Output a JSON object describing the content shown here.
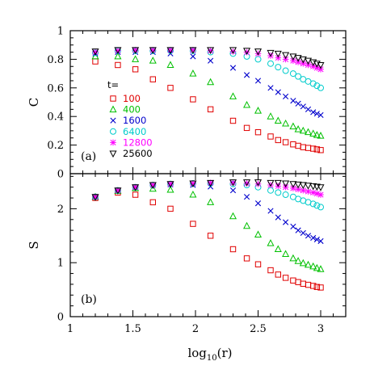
{
  "chart_data": [
    {
      "type": "scatter",
      "panel_label": "(a)",
      "ylabel": "C",
      "xlabel": "",
      "xlim": [
        1,
        3.2
      ],
      "ylim": [
        0,
        1
      ],
      "x_ticks": [
        1,
        1.5,
        2,
        2.5,
        3
      ],
      "y_ticks": [
        0,
        0.2,
        0.4,
        0.6,
        0.8,
        1
      ],
      "y_tick_labels": [
        "0",
        "0.2",
        "0.4",
        "0.6",
        "0.8",
        "1"
      ],
      "legend": {
        "title": "t=",
        "placement": "left"
      },
      "series": [
        {
          "name": "100",
          "color": "#e00000",
          "marker": "square",
          "x": [
            1.2,
            1.38,
            1.52,
            1.66,
            1.8,
            1.98,
            2.12,
            2.3,
            2.41,
            2.5,
            2.6,
            2.66,
            2.72,
            2.78,
            2.82,
            2.86,
            2.9,
            2.94,
            2.97,
            3.0
          ],
          "y": [
            0.785,
            0.76,
            0.73,
            0.66,
            0.6,
            0.52,
            0.45,
            0.37,
            0.32,
            0.29,
            0.26,
            0.235,
            0.22,
            0.205,
            0.195,
            0.185,
            0.18,
            0.175,
            0.17,
            0.165
          ]
        },
        {
          "name": "400",
          "color": "#00c000",
          "marker": "triangle-up",
          "x": [
            1.2,
            1.38,
            1.52,
            1.66,
            1.8,
            1.98,
            2.12,
            2.3,
            2.41,
            2.5,
            2.6,
            2.66,
            2.72,
            2.78,
            2.82,
            2.86,
            2.9,
            2.94,
            2.97,
            3.0
          ],
          "y": [
            0.82,
            0.82,
            0.8,
            0.79,
            0.76,
            0.7,
            0.64,
            0.54,
            0.48,
            0.44,
            0.4,
            0.37,
            0.35,
            0.33,
            0.31,
            0.3,
            0.29,
            0.28,
            0.27,
            0.265
          ]
        },
        {
          "name": "1600",
          "color": "#0000cc",
          "marker": "x",
          "x": [
            1.2,
            1.38,
            1.52,
            1.66,
            1.8,
            1.98,
            2.12,
            2.3,
            2.41,
            2.5,
            2.6,
            2.66,
            2.72,
            2.78,
            2.82,
            2.86,
            2.9,
            2.94,
            2.97,
            3.0
          ],
          "y": [
            0.84,
            0.85,
            0.85,
            0.85,
            0.84,
            0.82,
            0.79,
            0.74,
            0.69,
            0.65,
            0.6,
            0.57,
            0.54,
            0.51,
            0.49,
            0.47,
            0.45,
            0.43,
            0.42,
            0.41
          ]
        },
        {
          "name": "6400",
          "color": "#00cccc",
          "marker": "circle",
          "x": [
            1.2,
            1.38,
            1.52,
            1.66,
            1.8,
            1.98,
            2.12,
            2.3,
            2.41,
            2.5,
            2.6,
            2.66,
            2.72,
            2.78,
            2.82,
            2.86,
            2.9,
            2.94,
            2.97,
            3.0
          ],
          "y": [
            0.845,
            0.86,
            0.86,
            0.86,
            0.86,
            0.86,
            0.85,
            0.84,
            0.82,
            0.8,
            0.77,
            0.745,
            0.72,
            0.7,
            0.68,
            0.66,
            0.645,
            0.63,
            0.615,
            0.6
          ]
        },
        {
          "name": "12800",
          "color": "#ff00ff",
          "marker": "asterisk",
          "x": [
            1.2,
            1.38,
            1.52,
            1.66,
            1.8,
            1.98,
            2.12,
            2.3,
            2.41,
            2.5,
            2.6,
            2.66,
            2.72,
            2.78,
            2.82,
            2.86,
            2.9,
            2.94,
            2.97,
            3.0
          ],
          "y": [
            0.85,
            0.86,
            0.865,
            0.865,
            0.865,
            0.865,
            0.86,
            0.855,
            0.85,
            0.84,
            0.825,
            0.81,
            0.8,
            0.79,
            0.78,
            0.77,
            0.76,
            0.75,
            0.74,
            0.73
          ]
        },
        {
          "name": "25600",
          "color": "#000000",
          "marker": "triangle-down",
          "x": [
            1.2,
            1.38,
            1.52,
            1.66,
            1.8,
            1.98,
            2.12,
            2.3,
            2.41,
            2.5,
            2.6,
            2.66,
            2.72,
            2.78,
            2.82,
            2.86,
            2.9,
            2.94,
            2.97,
            3.0
          ],
          "y": [
            0.855,
            0.865,
            0.865,
            0.865,
            0.865,
            0.865,
            0.865,
            0.865,
            0.86,
            0.855,
            0.845,
            0.84,
            0.83,
            0.82,
            0.81,
            0.8,
            0.79,
            0.78,
            0.77,
            0.76
          ]
        }
      ]
    },
    {
      "type": "scatter",
      "panel_label": "(b)",
      "ylabel": "S",
      "xlabel": "log10(r)",
      "xlim": [
        1,
        3.2
      ],
      "ylim": [
        0,
        2.65
      ],
      "x_ticks": [
        1,
        1.5,
        2,
        2.5,
        3
      ],
      "x_tick_labels": [
        "1",
        "1.5",
        "2",
        "2.5",
        "3"
      ],
      "y_ticks": [
        0,
        1,
        2
      ],
      "y_tick_labels": [
        "0",
        "1",
        "2"
      ],
      "series": [
        {
          "name": "100",
          "color": "#e00000",
          "marker": "square",
          "x": [
            1.2,
            1.38,
            1.52,
            1.66,
            1.8,
            1.98,
            2.12,
            2.3,
            2.41,
            2.5,
            2.6,
            2.66,
            2.72,
            2.78,
            2.82,
            2.86,
            2.9,
            2.94,
            2.97,
            3.0
          ],
          "y": [
            2.2,
            2.3,
            2.26,
            2.12,
            2.0,
            1.72,
            1.5,
            1.25,
            1.08,
            0.97,
            0.86,
            0.78,
            0.72,
            0.67,
            0.64,
            0.61,
            0.59,
            0.57,
            0.55,
            0.54
          ]
        },
        {
          "name": "400",
          "color": "#00c000",
          "marker": "triangle-up",
          "x": [
            1.2,
            1.38,
            1.52,
            1.66,
            1.8,
            1.98,
            2.12,
            2.3,
            2.41,
            2.5,
            2.6,
            2.66,
            2.72,
            2.78,
            2.82,
            2.86,
            2.9,
            2.94,
            2.97,
            3.0
          ],
          "y": [
            2.22,
            2.33,
            2.38,
            2.37,
            2.35,
            2.26,
            2.12,
            1.86,
            1.68,
            1.52,
            1.36,
            1.25,
            1.16,
            1.08,
            1.03,
            0.99,
            0.96,
            0.93,
            0.9,
            0.88
          ]
        },
        {
          "name": "1600",
          "color": "#0000cc",
          "marker": "x",
          "x": [
            1.2,
            1.38,
            1.52,
            1.66,
            1.8,
            1.98,
            2.12,
            2.3,
            2.41,
            2.5,
            2.6,
            2.66,
            2.72,
            2.78,
            2.82,
            2.86,
            2.9,
            2.94,
            2.97,
            3.0
          ],
          "y": [
            2.22,
            2.34,
            2.4,
            2.44,
            2.45,
            2.44,
            2.41,
            2.34,
            2.22,
            2.1,
            1.96,
            1.84,
            1.75,
            1.67,
            1.6,
            1.55,
            1.5,
            1.46,
            1.43,
            1.4
          ]
        },
        {
          "name": "6400",
          "color": "#00cccc",
          "marker": "circle",
          "x": [
            1.2,
            1.38,
            1.52,
            1.66,
            1.8,
            1.98,
            2.12,
            2.3,
            2.41,
            2.5,
            2.6,
            2.66,
            2.72,
            2.78,
            2.82,
            2.86,
            2.9,
            2.94,
            2.97,
            3.0
          ],
          "y": [
            2.22,
            2.34,
            2.4,
            2.44,
            2.46,
            2.47,
            2.47,
            2.46,
            2.44,
            2.4,
            2.34,
            2.3,
            2.26,
            2.22,
            2.18,
            2.15,
            2.12,
            2.09,
            2.06,
            2.03
          ]
        },
        {
          "name": "12800",
          "color": "#ff00ff",
          "marker": "asterisk",
          "x": [
            1.2,
            1.38,
            1.52,
            1.66,
            1.8,
            1.98,
            2.12,
            2.3,
            2.41,
            2.5,
            2.6,
            2.66,
            2.72,
            2.78,
            2.82,
            2.86,
            2.9,
            2.94,
            2.97,
            3.0
          ],
          "y": [
            2.22,
            2.34,
            2.4,
            2.44,
            2.46,
            2.47,
            2.48,
            2.48,
            2.47,
            2.46,
            2.44,
            2.42,
            2.4,
            2.38,
            2.36,
            2.34,
            2.32,
            2.3,
            2.28,
            2.26
          ]
        },
        {
          "name": "25600",
          "color": "#000000",
          "marker": "triangle-down",
          "x": [
            1.2,
            1.38,
            1.52,
            1.66,
            1.8,
            1.98,
            2.12,
            2.3,
            2.41,
            2.5,
            2.6,
            2.66,
            2.72,
            2.78,
            2.82,
            2.86,
            2.9,
            2.94,
            2.97,
            3.0
          ],
          "y": [
            2.22,
            2.34,
            2.4,
            2.44,
            2.46,
            2.47,
            2.48,
            2.49,
            2.49,
            2.49,
            2.48,
            2.48,
            2.47,
            2.46,
            2.45,
            2.44,
            2.43,
            2.42,
            2.41,
            2.4
          ]
        }
      ]
    }
  ]
}
